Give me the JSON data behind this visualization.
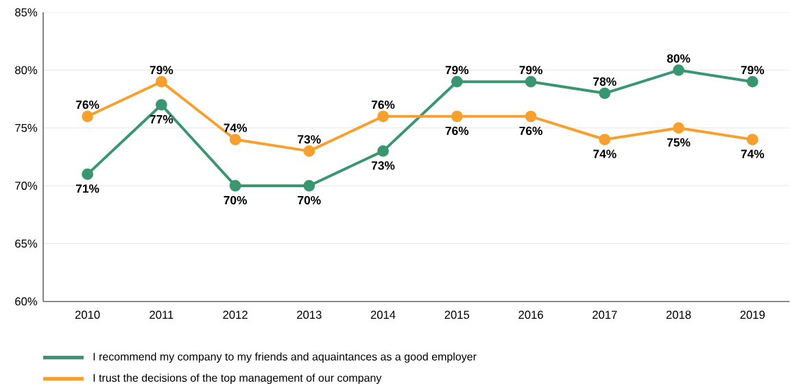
{
  "chart_data": {
    "type": "line",
    "categories": [
      "2010",
      "2011",
      "2012",
      "2013",
      "2014",
      "2015",
      "2016",
      "2017",
      "2018",
      "2019"
    ],
    "series": [
      {
        "name": "I recommend my company to my friends and aquaintances as a good employer",
        "color": "#3a9571",
        "values": [
          71,
          77,
          70,
          70,
          73,
          79,
          79,
          78,
          80,
          79
        ],
        "value_labels": [
          "71%",
          "77%",
          "70%",
          "70%",
          "73%",
          "79%",
          "79%",
          "78%",
          "80%",
          "79%"
        ]
      },
      {
        "name": "I trust the decisions of the top management of our company",
        "color": "#f7a02f",
        "values": [
          76,
          79,
          74,
          73,
          76,
          76,
          76,
          74,
          75,
          74
        ],
        "value_labels": [
          "76%",
          "79%",
          "74%",
          "73%",
          "76%",
          "76%",
          "76%",
          "74%",
          "75%",
          "74%"
        ]
      }
    ],
    "ylim": [
      60,
      85
    ],
    "yticks": [
      {
        "value": 60,
        "label": "60%"
      },
      {
        "value": 65,
        "label": "65%"
      },
      {
        "value": 70,
        "label": "70%"
      },
      {
        "value": 75,
        "label": "75%"
      },
      {
        "value": 80,
        "label": "80%"
      },
      {
        "value": 85,
        "label": "85%"
      }
    ],
    "grid": "y",
    "legend": "bottom",
    "marker": "circle",
    "line_style": "solid"
  }
}
